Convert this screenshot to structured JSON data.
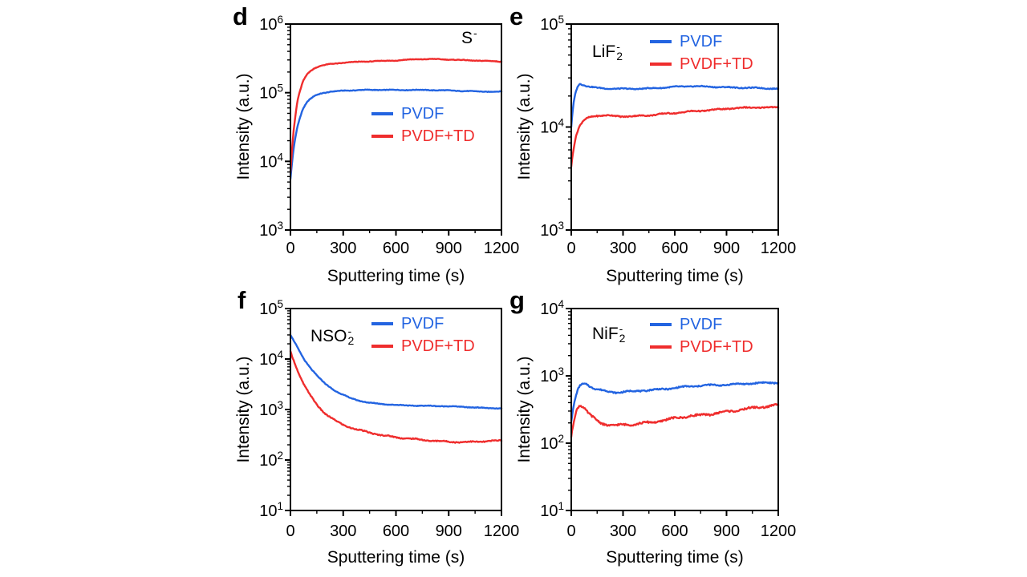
{
  "figure": {
    "background": "#ffffff",
    "colors": {
      "pvdf_blue": "#2364E1",
      "pvdf_td_red": "#EF2D2D",
      "axis": "#000000"
    }
  },
  "chart_data": [
    {
      "type": "line",
      "panel_label": "d",
      "annotation": {
        "main": "S",
        "sup": "-",
        "sub": ""
      },
      "xlabel": "Sputtering time (s)",
      "ylabel": "Intensity (a.u.)",
      "xlim": [
        0,
        1200
      ],
      "xticks": [
        0,
        300,
        600,
        900,
        1200
      ],
      "xtick_labels": [
        "0",
        "300",
        "600",
        "900",
        "1200"
      ],
      "xminor": [
        150,
        450,
        750,
        1050
      ],
      "ylim": [
        1000,
        1000000
      ],
      "yticks": [
        {
          "base": "10",
          "exp": "3"
        },
        {
          "base": "10",
          "exp": "4"
        },
        {
          "base": "10",
          "exp": "5"
        },
        {
          "base": "10",
          "exp": "6"
        }
      ],
      "legend_position": "center-right",
      "series": [
        {
          "name": "PVDF",
          "color": "#2364E1",
          "seed": 1,
          "noise": {
            "hf": 0.004,
            "lf": 0.003
          },
          "points": [
            [
              0,
              5500
            ],
            [
              8,
              9000
            ],
            [
              20,
              17000
            ],
            [
              40,
              33000
            ],
            [
              70,
              58000
            ],
            [
              100,
              76000
            ],
            [
              140,
              91000
            ],
            [
              180,
              99000
            ],
            [
              230,
              104000
            ],
            [
              300,
              107000
            ],
            [
              400,
              109000
            ],
            [
              550,
              110000
            ],
            [
              700,
              110000
            ],
            [
              850,
              108000
            ],
            [
              1000,
              106000
            ],
            [
              1100,
              104000
            ],
            [
              1200,
              103000
            ]
          ]
        },
        {
          "name": "PVDF+TD",
          "color": "#EF2D2D",
          "seed": 2,
          "noise": {
            "hf": 0.004,
            "lf": 0.003
          },
          "points": [
            [
              0,
              7000
            ],
            [
              8,
              14000
            ],
            [
              20,
              32000
            ],
            [
              40,
              78000
            ],
            [
              70,
              145000
            ],
            [
              100,
              196000
            ],
            [
              140,
              232000
            ],
            [
              180,
              250000
            ],
            [
              230,
              262000
            ],
            [
              300,
              272000
            ],
            [
              400,
              282000
            ],
            [
              500,
              290000
            ],
            [
              600,
              296000
            ],
            [
              700,
              305000
            ],
            [
              800,
              308000
            ],
            [
              900,
              305000
            ],
            [
              1000,
              298000
            ],
            [
              1100,
              290000
            ],
            [
              1200,
              283000
            ]
          ]
        }
      ]
    },
    {
      "type": "line",
      "panel_label": "e",
      "annotation": {
        "main": "LiF",
        "sup": "-",
        "sub": "2"
      },
      "xlabel": "Sputtering time (s)",
      "ylabel": "Intensity (a.u.)",
      "xlim": [
        0,
        1200
      ],
      "xticks": [
        0,
        300,
        600,
        900,
        1200
      ],
      "xtick_labels": [
        "0",
        "300",
        "600",
        "900",
        "1200"
      ],
      "xminor": [
        150,
        450,
        750,
        1050
      ],
      "ylim": [
        1000,
        100000
      ],
      "yticks": [
        {
          "base": "10",
          "exp": "3"
        },
        {
          "base": "10",
          "exp": "4"
        },
        {
          "base": "10",
          "exp": "5"
        }
      ],
      "legend_position": "top-right",
      "series": [
        {
          "name": "PVDF",
          "color": "#2364E1",
          "seed": 3,
          "noise": {
            "hf": 0.004,
            "lf": 0.003
          },
          "points": [
            [
              0,
              10000
            ],
            [
              10,
              16000
            ],
            [
              25,
              22000
            ],
            [
              45,
              26500
            ],
            [
              70,
              25800
            ],
            [
              100,
              24800
            ],
            [
              150,
              24000
            ],
            [
              220,
              23500
            ],
            [
              300,
              23400
            ],
            [
              400,
              23600
            ],
            [
              500,
              24000
            ],
            [
              600,
              24500
            ],
            [
              700,
              24800
            ],
            [
              800,
              24700
            ],
            [
              900,
              24400
            ],
            [
              1000,
              24000
            ],
            [
              1100,
              23800
            ],
            [
              1200,
              23500
            ]
          ]
        },
        {
          "name": "PVDF+TD",
          "color": "#EF2D2D",
          "seed": 4,
          "noise": {
            "hf": 0.005,
            "lf": 0.004
          },
          "points": [
            [
              0,
              4200
            ],
            [
              10,
              5800
            ],
            [
              25,
              8000
            ],
            [
              45,
              10000
            ],
            [
              70,
              11500
            ],
            [
              100,
              12300
            ],
            [
              140,
              12800
            ],
            [
              200,
              12900
            ],
            [
              280,
              12700
            ],
            [
              360,
              12800
            ],
            [
              440,
              13000
            ],
            [
              520,
              13300
            ],
            [
              600,
              13600
            ],
            [
              680,
              14100
            ],
            [
              760,
              14500
            ],
            [
              840,
              14800
            ],
            [
              920,
              15100
            ],
            [
              1000,
              15300
            ],
            [
              1100,
              15500
            ],
            [
              1200,
              15600
            ]
          ]
        }
      ]
    },
    {
      "type": "line",
      "panel_label": "f",
      "annotation": {
        "main": "NSO",
        "sup": "-",
        "sub": "2"
      },
      "xlabel": "Sputtering time (s)",
      "ylabel": "Intensity (a.u.)",
      "xlim": [
        0,
        1200
      ],
      "xticks": [
        0,
        300,
        600,
        900,
        1200
      ],
      "xtick_labels": [
        "0",
        "300",
        "600",
        "900",
        "1200"
      ],
      "xminor": [
        150,
        450,
        750,
        1050
      ],
      "ylim": [
        10,
        100000
      ],
      "yticks": [
        {
          "base": "10",
          "exp": "1"
        },
        {
          "base": "10",
          "exp": "2"
        },
        {
          "base": "10",
          "exp": "3"
        },
        {
          "base": "10",
          "exp": "4"
        },
        {
          "base": "10",
          "exp": "5"
        }
      ],
      "legend_position": "top-right",
      "series": [
        {
          "name": "PVDF",
          "color": "#2364E1",
          "seed": 5,
          "noise": {
            "hf": 0.006,
            "lf": 0.004
          },
          "points": [
            [
              0,
              30000
            ],
            [
              25,
              21000
            ],
            [
              50,
              14500
            ],
            [
              80,
              9500
            ],
            [
              120,
              6200
            ],
            [
              160,
              4300
            ],
            [
              200,
              3200
            ],
            [
              250,
              2400
            ],
            [
              300,
              1950
            ],
            [
              350,
              1650
            ],
            [
              400,
              1470
            ],
            [
              450,
              1350
            ],
            [
              520,
              1280
            ],
            [
              600,
              1230
            ],
            [
              700,
              1200
            ],
            [
              800,
              1180
            ],
            [
              900,
              1150
            ],
            [
              1000,
              1120
            ],
            [
              1100,
              1080
            ],
            [
              1200,
              1050
            ]
          ]
        },
        {
          "name": "PVDF+TD",
          "color": "#EF2D2D",
          "seed": 6,
          "noise": {
            "hf": 0.01,
            "lf": 0.008
          },
          "points": [
            [
              0,
              14000
            ],
            [
              25,
              8200
            ],
            [
              50,
              4800
            ],
            [
              80,
              2900
            ],
            [
              120,
              1750
            ],
            [
              160,
              1150
            ],
            [
              200,
              820
            ],
            [
              250,
              620
            ],
            [
              300,
              500
            ],
            [
              350,
              425
            ],
            [
              400,
              380
            ],
            [
              450,
              345
            ],
            [
              520,
              310
            ],
            [
              600,
              285
            ],
            [
              700,
              262
            ],
            [
              780,
              242
            ],
            [
              860,
              232
            ],
            [
              940,
              228
            ],
            [
              1020,
              230
            ],
            [
              1100,
              235
            ],
            [
              1200,
              240
            ]
          ]
        }
      ]
    },
    {
      "type": "line",
      "panel_label": "g",
      "annotation": {
        "main": "NiF",
        "sup": "-",
        "sub": "2"
      },
      "xlabel": "Sputtering time (s)",
      "ylabel": "Intensity (a.u.)",
      "xlim": [
        0,
        1200
      ],
      "xticks": [
        0,
        300,
        600,
        900,
        1200
      ],
      "xtick_labels": [
        "0",
        "300",
        "600",
        "900",
        "1200"
      ],
      "xminor": [
        150,
        450,
        750,
        1050
      ],
      "ylim": [
        10,
        10000
      ],
      "yticks": [
        {
          "base": "10",
          "exp": "1"
        },
        {
          "base": "10",
          "exp": "2"
        },
        {
          "base": "10",
          "exp": "3"
        },
        {
          "base": "10",
          "exp": "4"
        }
      ],
      "legend_position": "top-right",
      "series": [
        {
          "name": "PVDF",
          "color": "#2364E1",
          "seed": 7,
          "noise": {
            "hf": 0.009,
            "lf": 0.008
          },
          "points": [
            [
              0,
              210
            ],
            [
              12,
              340
            ],
            [
              25,
              480
            ],
            [
              40,
              640
            ],
            [
              55,
              740
            ],
            [
              75,
              770
            ],
            [
              95,
              760
            ],
            [
              110,
              700
            ],
            [
              140,
              650
            ],
            [
              180,
              610
            ],
            [
              220,
              580
            ],
            [
              260,
              565
            ],
            [
              300,
              570
            ],
            [
              360,
              585
            ],
            [
              420,
              605
            ],
            [
              480,
              625
            ],
            [
              540,
              645
            ],
            [
              600,
              665
            ],
            [
              660,
              685
            ],
            [
              720,
              700
            ],
            [
              780,
              715
            ],
            [
              840,
              730
            ],
            [
              900,
              745
            ],
            [
              960,
              760
            ],
            [
              1020,
              770
            ],
            [
              1080,
              775
            ],
            [
              1140,
              780
            ],
            [
              1200,
              790
            ]
          ]
        },
        {
          "name": "PVDF+TD",
          "color": "#EF2D2D",
          "seed": 8,
          "noise": {
            "hf": 0.013,
            "lf": 0.011
          },
          "points": [
            [
              0,
              125
            ],
            [
              12,
              200
            ],
            [
              25,
              290
            ],
            [
              40,
              360
            ],
            [
              52,
              380
            ],
            [
              70,
              350
            ],
            [
              90,
              300
            ],
            [
              110,
              260
            ],
            [
              140,
              225
            ],
            [
              170,
              200
            ],
            [
              200,
              188
            ],
            [
              240,
              180
            ],
            [
              280,
              182
            ],
            [
              320,
              188
            ],
            [
              360,
              193
            ],
            [
              400,
              198
            ],
            [
              450,
              205
            ],
            [
              500,
              213
            ],
            [
              560,
              224
            ],
            [
              620,
              236
            ],
            [
              680,
              248
            ],
            [
              740,
              258
            ],
            [
              800,
              272
            ],
            [
              860,
              288
            ],
            [
              920,
              300
            ],
            [
              980,
              312
            ],
            [
              1040,
              325
            ],
            [
              1100,
              340
            ],
            [
              1150,
              355
            ],
            [
              1200,
              372
            ]
          ]
        }
      ]
    }
  ]
}
